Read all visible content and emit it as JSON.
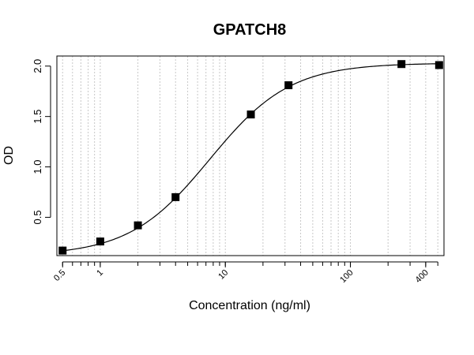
{
  "chart_data": {
    "type": "scatter",
    "title": "GPATCH8",
    "xlabel": "Concentration (ng/ml)",
    "ylabel": "OD",
    "x_scale": "log",
    "xlim": [
      0.45,
      560
    ],
    "ylim": [
      0.12,
      2.1
    ],
    "grid": "vertical dotted at log minor ticks",
    "x_ticks": [
      {
        "value": 0.5,
        "label": "0.5"
      },
      {
        "value": 1,
        "label": "1"
      },
      {
        "value": 10,
        "label": "10"
      },
      {
        "value": 100,
        "label": "100"
      },
      {
        "value": 400,
        "label": "400"
      }
    ],
    "y_ticks": [
      {
        "value": 0.5,
        "label": "0.5"
      },
      {
        "value": 1.0,
        "label": "1.0"
      },
      {
        "value": 1.5,
        "label": "1.5"
      },
      {
        "value": 2.0,
        "label": "2.0"
      }
    ],
    "points": [
      {
        "x": 0.5,
        "y": 0.17
      },
      {
        "x": 1,
        "y": 0.26
      },
      {
        "x": 2,
        "y": 0.42
      },
      {
        "x": 4,
        "y": 0.7
      },
      {
        "x": 16,
        "y": 1.52
      },
      {
        "x": 32,
        "y": 1.81
      },
      {
        "x": 256,
        "y": 2.02
      },
      {
        "x": 512,
        "y": 2.01
      }
    ],
    "fit_curve": {
      "model": "4PL",
      "bottom": 0.12,
      "top": 2.03,
      "ec50": 7.5,
      "hill": 1.35
    }
  }
}
